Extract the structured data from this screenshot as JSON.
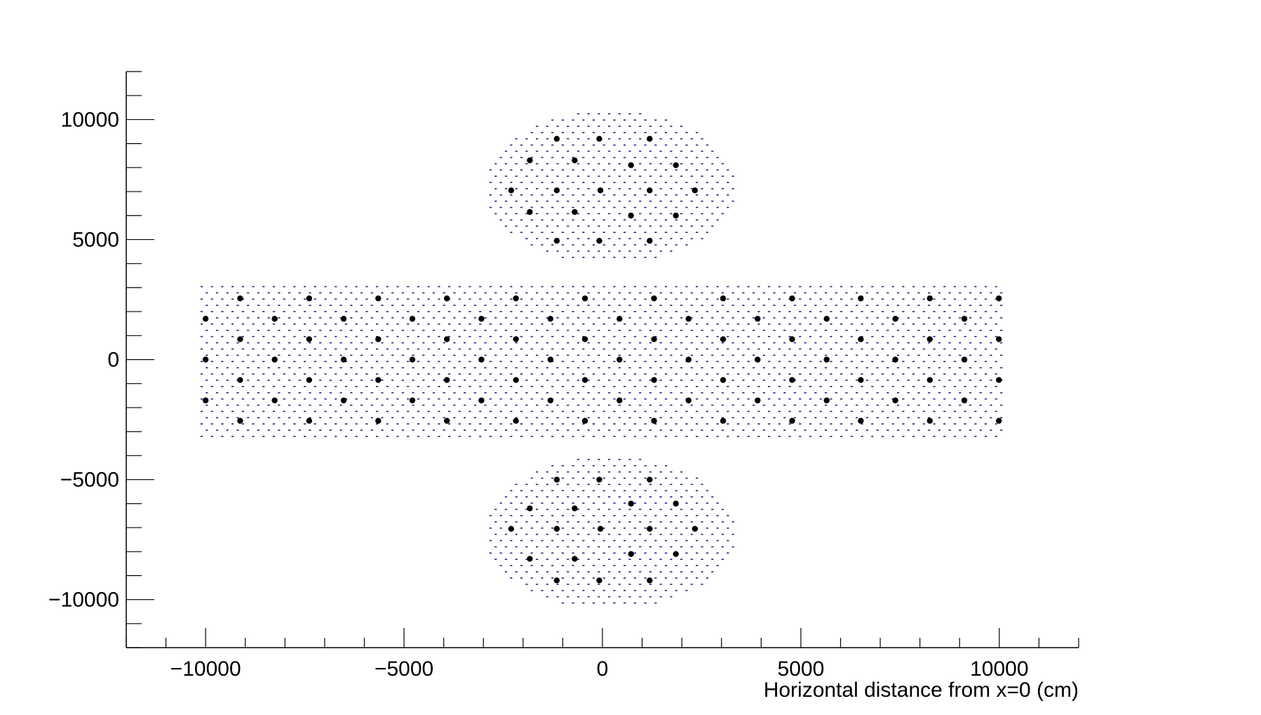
{
  "chart_data": {
    "type": "scatter",
    "title": "",
    "xlabel": "Horizontal distance from x=0 (cm)",
    "ylabel": "",
    "xlim": [
      -12000,
      12000
    ],
    "ylim": [
      -12000,
      12000
    ],
    "x_ticks": [
      -10000,
      -5000,
      0,
      5000,
      10000
    ],
    "y_ticks": [
      -10000,
      -5000,
      0,
      5000,
      10000
    ],
    "x_tick_labels": [
      "−10000",
      "−5000",
      "0",
      "5000",
      "10000"
    ],
    "y_tick_labels": [
      "−10000",
      "−5000",
      "0",
      "5000",
      "10000"
    ],
    "x_minor_step": 1000,
    "y_minor_step": 1000,
    "grid": false,
    "legend": "none",
    "colors": {
      "fine_grid": "#1a237e",
      "markers": "#000000",
      "axis": "#000000"
    },
    "regions": [
      {
        "shape": "rectangle",
        "x_range": [
          -10100,
          10100
        ],
        "y_range": [
          -3200,
          3100
        ]
      },
      {
        "shape": "ellipse",
        "center": [
          200,
          7200
        ],
        "semi_axes": [
          3150,
          3200
        ]
      },
      {
        "shape": "ellipse",
        "center": [
          200,
          -7200
        ],
        "semi_axes": [
          3150,
          3200
        ]
      }
    ],
    "fine_grid_spacing": [
      260,
      260
    ],
    "series": [
      {
        "points": [
          [
            -10000,
            1700
          ],
          [
            -8260,
            1700
          ],
          [
            -6520,
            1700
          ],
          [
            -4790,
            1700
          ],
          [
            -3050,
            1700
          ],
          [
            -1310,
            1700
          ],
          [
            430,
            1700
          ],
          [
            2170,
            1700
          ],
          [
            3910,
            1700
          ],
          [
            5650,
            1700
          ],
          [
            7380,
            1700
          ],
          [
            9120,
            1700
          ],
          [
            -10000,
            0
          ],
          [
            -8260,
            0
          ],
          [
            -6520,
            0
          ],
          [
            -4790,
            0
          ],
          [
            -3050,
            0
          ],
          [
            -1310,
            0
          ],
          [
            430,
            0
          ],
          [
            2170,
            0
          ],
          [
            3910,
            0
          ],
          [
            5650,
            0
          ],
          [
            7380,
            0
          ],
          [
            9120,
            0
          ],
          [
            -10000,
            -1700
          ],
          [
            -8260,
            -1700
          ],
          [
            -6520,
            -1700
          ],
          [
            -4790,
            -1700
          ],
          [
            -3050,
            -1700
          ],
          [
            -1310,
            -1700
          ],
          [
            430,
            -1700
          ],
          [
            2170,
            -1700
          ],
          [
            3910,
            -1700
          ],
          [
            5650,
            -1700
          ],
          [
            7380,
            -1700
          ],
          [
            9120,
            -1700
          ],
          [
            -9130,
            2550
          ],
          [
            -7390,
            2550
          ],
          [
            -5650,
            2550
          ],
          [
            -3920,
            2550
          ],
          [
            -2180,
            2550
          ],
          [
            -440,
            2550
          ],
          [
            1300,
            2550
          ],
          [
            3040,
            2550
          ],
          [
            4780,
            2550
          ],
          [
            6510,
            2550
          ],
          [
            8250,
            2550
          ],
          [
            9990,
            2550
          ],
          [
            -9130,
            850
          ],
          [
            -7390,
            850
          ],
          [
            -5650,
            850
          ],
          [
            -3920,
            850
          ],
          [
            -2180,
            850
          ],
          [
            -440,
            850
          ],
          [
            1300,
            850
          ],
          [
            3040,
            850
          ],
          [
            4780,
            850
          ],
          [
            6510,
            850
          ],
          [
            8250,
            850
          ],
          [
            9990,
            850
          ],
          [
            -9130,
            -850
          ],
          [
            -7390,
            -850
          ],
          [
            -5650,
            -850
          ],
          [
            -3920,
            -850
          ],
          [
            -2180,
            -850
          ],
          [
            -440,
            -850
          ],
          [
            1300,
            -850
          ],
          [
            3040,
            -850
          ],
          [
            4780,
            -850
          ],
          [
            6510,
            -850
          ],
          [
            8250,
            -850
          ],
          [
            9990,
            -850
          ],
          [
            -9130,
            -2550
          ],
          [
            -7390,
            -2550
          ],
          [
            -5650,
            -2550
          ],
          [
            -3920,
            -2550
          ],
          [
            -2180,
            -2550
          ],
          [
            -440,
            -2550
          ],
          [
            1300,
            -2550
          ],
          [
            3040,
            -2550
          ],
          [
            4780,
            -2550
          ],
          [
            6510,
            -2550
          ],
          [
            8250,
            -2550
          ],
          [
            9990,
            -2550
          ],
          [
            -1150,
            9200
          ],
          [
            -80,
            9200
          ],
          [
            1190,
            9200
          ],
          [
            -1830,
            8300
          ],
          [
            -700,
            8300
          ],
          [
            720,
            8100
          ],
          [
            1850,
            8100
          ],
          [
            -2300,
            7050
          ],
          [
            -1150,
            7050
          ],
          [
            -50,
            7050
          ],
          [
            1190,
            7050
          ],
          [
            2330,
            7050
          ],
          [
            -1830,
            6150
          ],
          [
            -700,
            6150
          ],
          [
            720,
            6000
          ],
          [
            1850,
            6000
          ],
          [
            -1150,
            4950
          ],
          [
            -80,
            4950
          ],
          [
            1190,
            4950
          ],
          [
            -1150,
            -5000
          ],
          [
            -80,
            -5000
          ],
          [
            1190,
            -5000
          ],
          [
            -1830,
            -6200
          ],
          [
            -700,
            -6200
          ],
          [
            720,
            -6000
          ],
          [
            1850,
            -6000
          ],
          [
            -2300,
            -7050
          ],
          [
            -1150,
            -7050
          ],
          [
            -50,
            -7050
          ],
          [
            1190,
            -7050
          ],
          [
            2330,
            -7050
          ],
          [
            -1830,
            -8300
          ],
          [
            -700,
            -8300
          ],
          [
            720,
            -8100
          ],
          [
            1850,
            -8100
          ],
          [
            -1150,
            -9200
          ],
          [
            -80,
            -9200
          ],
          [
            1190,
            -9200
          ]
        ]
      }
    ]
  }
}
